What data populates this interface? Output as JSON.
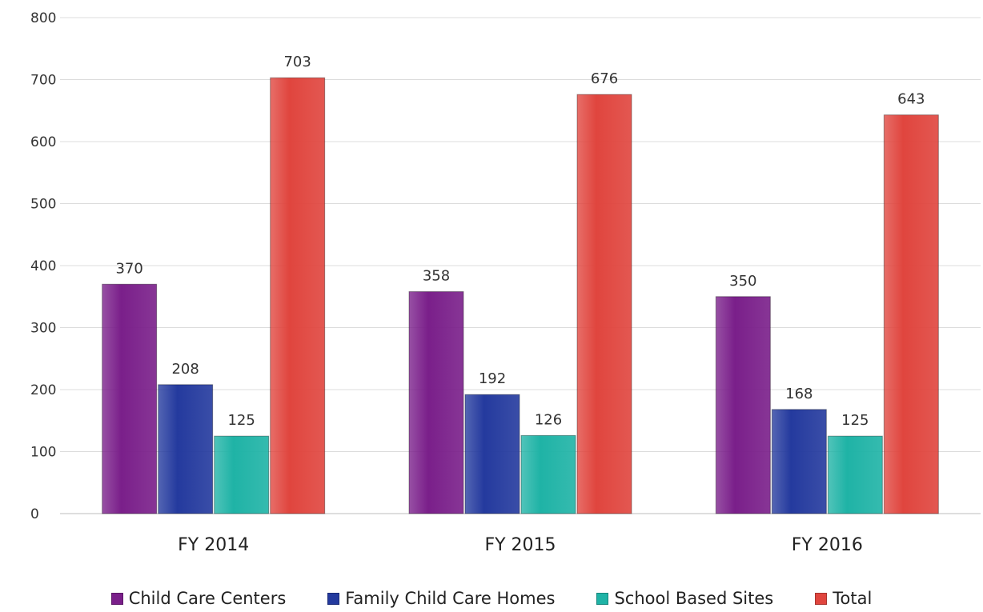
{
  "chart_data": {
    "type": "bar",
    "categories": [
      "FY 2014",
      "FY 2015",
      "FY 2016"
    ],
    "series": [
      {
        "name": "Child Care Centers",
        "values": [
          370,
          358,
          350
        ],
        "color": "#7a1f8a"
      },
      {
        "name": "Family Child Care Homes",
        "values": [
          208,
          192,
          168
        ],
        "color": "#243a9e"
      },
      {
        "name": "School Based Sites",
        "values": [
          125,
          126,
          125
        ],
        "color": "#1fb3a6"
      },
      {
        "name": "Total",
        "values": [
          703,
          676,
          643
        ],
        "color": "#e0453e"
      }
    ],
    "data_labels": [
      [
        "370",
        "208",
        "125",
        "703"
      ],
      [
        "358",
        "192",
        "126",
        "676"
      ],
      [
        "350",
        "168",
        "125",
        "643"
      ]
    ],
    "y_ticks": [
      "0",
      "100",
      "200",
      "300",
      "400",
      "500",
      "600",
      "700",
      "800"
    ],
    "ylim": [
      0,
      800
    ],
    "grid": true,
    "legend_position": "bottom",
    "title": "",
    "xlabel": "",
    "ylabel": ""
  }
}
